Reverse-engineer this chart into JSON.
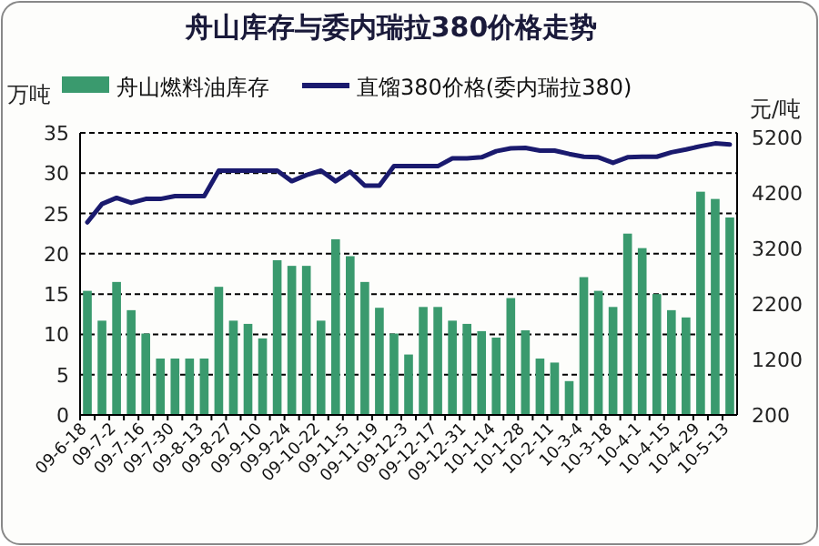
{
  "chart_data": {
    "type": "bar",
    "title": "舟山库存与委内瑞拉380价格走势",
    "ylabel": "万吨",
    "y2label": "元/吨",
    "categories": [
      "09-6-18",
      null,
      "09-7-2",
      null,
      "09-7-16",
      null,
      "09-7-30",
      null,
      "09-8-13",
      null,
      "09-8-27",
      null,
      "09-9-10",
      null,
      "09-9-24",
      null,
      "09-10-22",
      null,
      "09-11-5",
      null,
      "09-11-19",
      null,
      "09-12-3",
      null,
      "09-12-17",
      null,
      "09-12-31",
      null,
      "10-1-14",
      null,
      "10-1-28",
      null,
      "10-2-11",
      null,
      "10-3-4",
      null,
      "10-3-18",
      null,
      "10-4-1",
      null,
      "10-4-15",
      null,
      "10-4-29",
      null,
      "10-5-13"
    ],
    "series": [
      {
        "name": "舟山燃料油库存",
        "type": "bar",
        "color": "#3a9a6e",
        "values": [
          15.4,
          11.7,
          16.5,
          13,
          10.1,
          7,
          7,
          7,
          7,
          15.9,
          11.7,
          11.3,
          9.5,
          19.2,
          18.5,
          18.5,
          11.7,
          21.8,
          19.7,
          16.5,
          13.3,
          10.1,
          7.5,
          13.4,
          13.4,
          11.7,
          11.3,
          10.4,
          9.6,
          14.5,
          10.5,
          7,
          6.5,
          4.2,
          17.1,
          15.4,
          13.4,
          22.5,
          20.7,
          15,
          13,
          12.1,
          27.7,
          26.8,
          24.5
        ]
      },
      {
        "name": "直馏380价格(委内瑞拉380)",
        "type": "line",
        "axis": "y2",
        "color": "#1a1a6e",
        "values": [
          3670,
          4000,
          4110,
          4020,
          4090,
          4090,
          4140,
          4140,
          4140,
          4600,
          4600,
          4600,
          4600,
          4600,
          4410,
          4520,
          4600,
          4410,
          4580,
          4330,
          4330,
          4680,
          4680,
          4680,
          4680,
          4820,
          4820,
          4840,
          4950,
          5000,
          5010,
          4960,
          4960,
          4900,
          4850,
          4840,
          4740,
          4840,
          4850,
          4850,
          4930,
          4980,
          5040,
          5090,
          5070
        ]
      }
    ],
    "ylim": [
      0,
      35
    ],
    "yticks": [
      0,
      5,
      10,
      15,
      20,
      25,
      30,
      35
    ],
    "y2lim": [
      200,
      5280
    ],
    "y2ticks": [
      200,
      1200,
      2200,
      3200,
      4200,
      5200
    ],
    "grid": "y",
    "legend": "top",
    "marker": "none"
  }
}
